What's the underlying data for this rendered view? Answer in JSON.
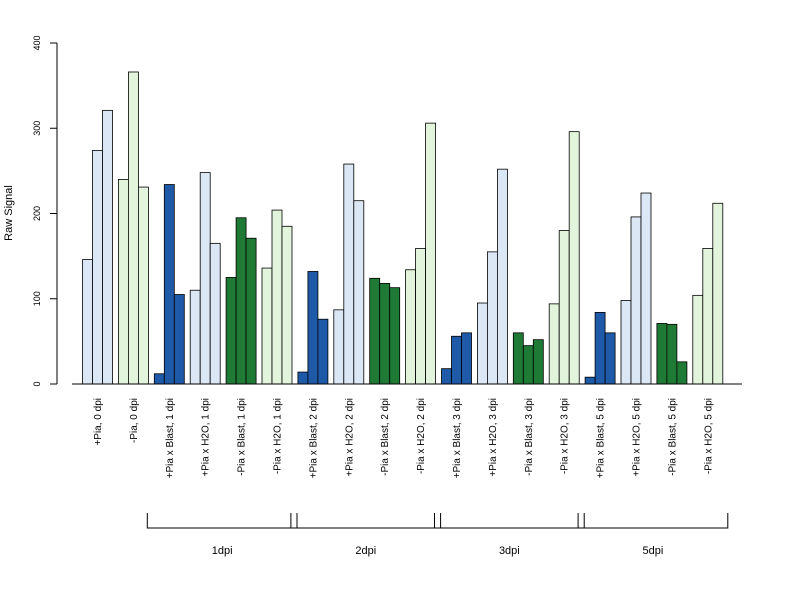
{
  "chart_data": {
    "type": "bar",
    "title": "",
    "xlabel": "",
    "ylabel": "Raw Signal",
    "ylim": [
      0,
      400
    ],
    "yticks": [
      0,
      100,
      200,
      300,
      400
    ],
    "grid": false,
    "legend": "none",
    "colors": {
      "light_blue": "#dbe7f5",
      "light_green": "#e3f4dc",
      "dark_blue": "#1f5aa8",
      "dark_green": "#1f7a35"
    },
    "categories": [
      "+Pia, 0 dpi",
      "-Pia, 0 dpi",
      "+Pia x Blast, 1 dpi",
      "+Pia x H2O, 1 dpi",
      "-Pia x Blast, 1 dpi",
      "-Pia x H2O, 1 dpi",
      "+Pia x Blast, 2 dpi",
      "+Pia x H2O, 2 dpi",
      "-Pia x Blast, 2 dpi",
      "-Pia x H2O, 2 dpi",
      "+Pia x Blast, 3 dpi",
      "+Pia x H2O, 3 dpi",
      "-Pia x Blast, 3 dpi",
      "-Pia x H2O, 3 dpi",
      "+Pia x Blast, 5 dpi",
      "+Pia x H2O, 5 dpi",
      "-Pia x Blast, 5 dpi",
      "-Pia x H2O, 5 dpi"
    ],
    "group_colors": [
      "light_blue",
      "light_green",
      "dark_blue",
      "light_blue",
      "dark_green",
      "light_green",
      "dark_blue",
      "light_blue",
      "dark_green",
      "light_green",
      "dark_blue",
      "light_blue",
      "dark_green",
      "light_green",
      "dark_blue",
      "light_blue",
      "dark_green",
      "light_green"
    ],
    "values": [
      [
        146,
        274,
        321
      ],
      [
        240,
        366,
        231
      ],
      [
        12,
        234,
        105
      ],
      [
        110,
        248,
        165
      ],
      [
        125,
        195,
        171
      ],
      [
        136,
        204,
        185
      ],
      [
        14,
        132,
        76
      ],
      [
        87,
        258,
        215
      ],
      [
        124,
        118,
        113
      ],
      [
        134,
        159,
        306
      ],
      [
        18,
        56,
        60
      ],
      [
        95,
        155,
        252
      ],
      [
        60,
        45,
        52
      ],
      [
        94,
        180,
        296
      ],
      [
        8,
        84,
        60
      ],
      [
        98,
        196,
        224
      ],
      [
        71,
        70,
        26
      ],
      [
        104,
        159,
        212
      ]
    ],
    "brackets": [
      {
        "label": "1dpi",
        "from": 2,
        "to": 5
      },
      {
        "label": "2dpi",
        "from": 6,
        "to": 9
      },
      {
        "label": "3dpi",
        "from": 10,
        "to": 13
      },
      {
        "label": "5dpi",
        "from": 14,
        "to": 17
      }
    ]
  }
}
